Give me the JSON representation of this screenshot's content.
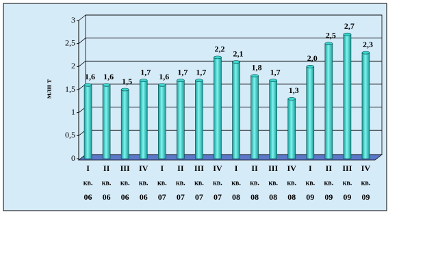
{
  "chart_data": {
    "type": "bar",
    "y_label": "млн т",
    "categories": [
      [
        "I",
        "кв.",
        "06"
      ],
      [
        "II",
        "кв.",
        "06"
      ],
      [
        "III",
        "кв.",
        "06"
      ],
      [
        "IV",
        "кв.",
        "06"
      ],
      [
        "I",
        "кв.",
        "07"
      ],
      [
        "II",
        "кв.",
        "07"
      ],
      [
        "III",
        "кв.",
        "07"
      ],
      [
        "IV",
        "кв.",
        "07"
      ],
      [
        "I",
        "кв.",
        "08"
      ],
      [
        "II",
        "кв.",
        "08"
      ],
      [
        "III",
        "кв.",
        "08"
      ],
      [
        "IV",
        "кв.",
        "08"
      ],
      [
        "I",
        "кв.",
        "09"
      ],
      [
        "II",
        "кв.",
        "09"
      ],
      [
        "III",
        "кв.",
        "09"
      ],
      [
        "IV",
        "кв.",
        "09"
      ]
    ],
    "values": [
      1.6,
      1.6,
      1.5,
      1.7,
      1.6,
      1.7,
      1.7,
      2.2,
      2.1,
      1.8,
      1.7,
      1.3,
      2.0,
      2.5,
      2.7,
      2.3
    ],
    "value_labels": [
      "1,6",
      "1,6",
      "1,5",
      "1,7",
      "1,6",
      "1,7",
      "1,7",
      "2,2",
      "2,1",
      "1,8",
      "1,7",
      "1,3",
      "2,0",
      "2,5",
      "2,7",
      "2,3"
    ],
    "color": "#3cd6d0",
    "ylim": [
      0,
      3
    ],
    "yticks": [
      0,
      {
        "value": 0.5,
        "label": "0,5"
      },
      1,
      {
        "value": 1.5,
        "label": "1,5"
      },
      2,
      {
        "value": 2.5,
        "label": "2,5"
      },
      3
    ],
    "grid": true
  }
}
